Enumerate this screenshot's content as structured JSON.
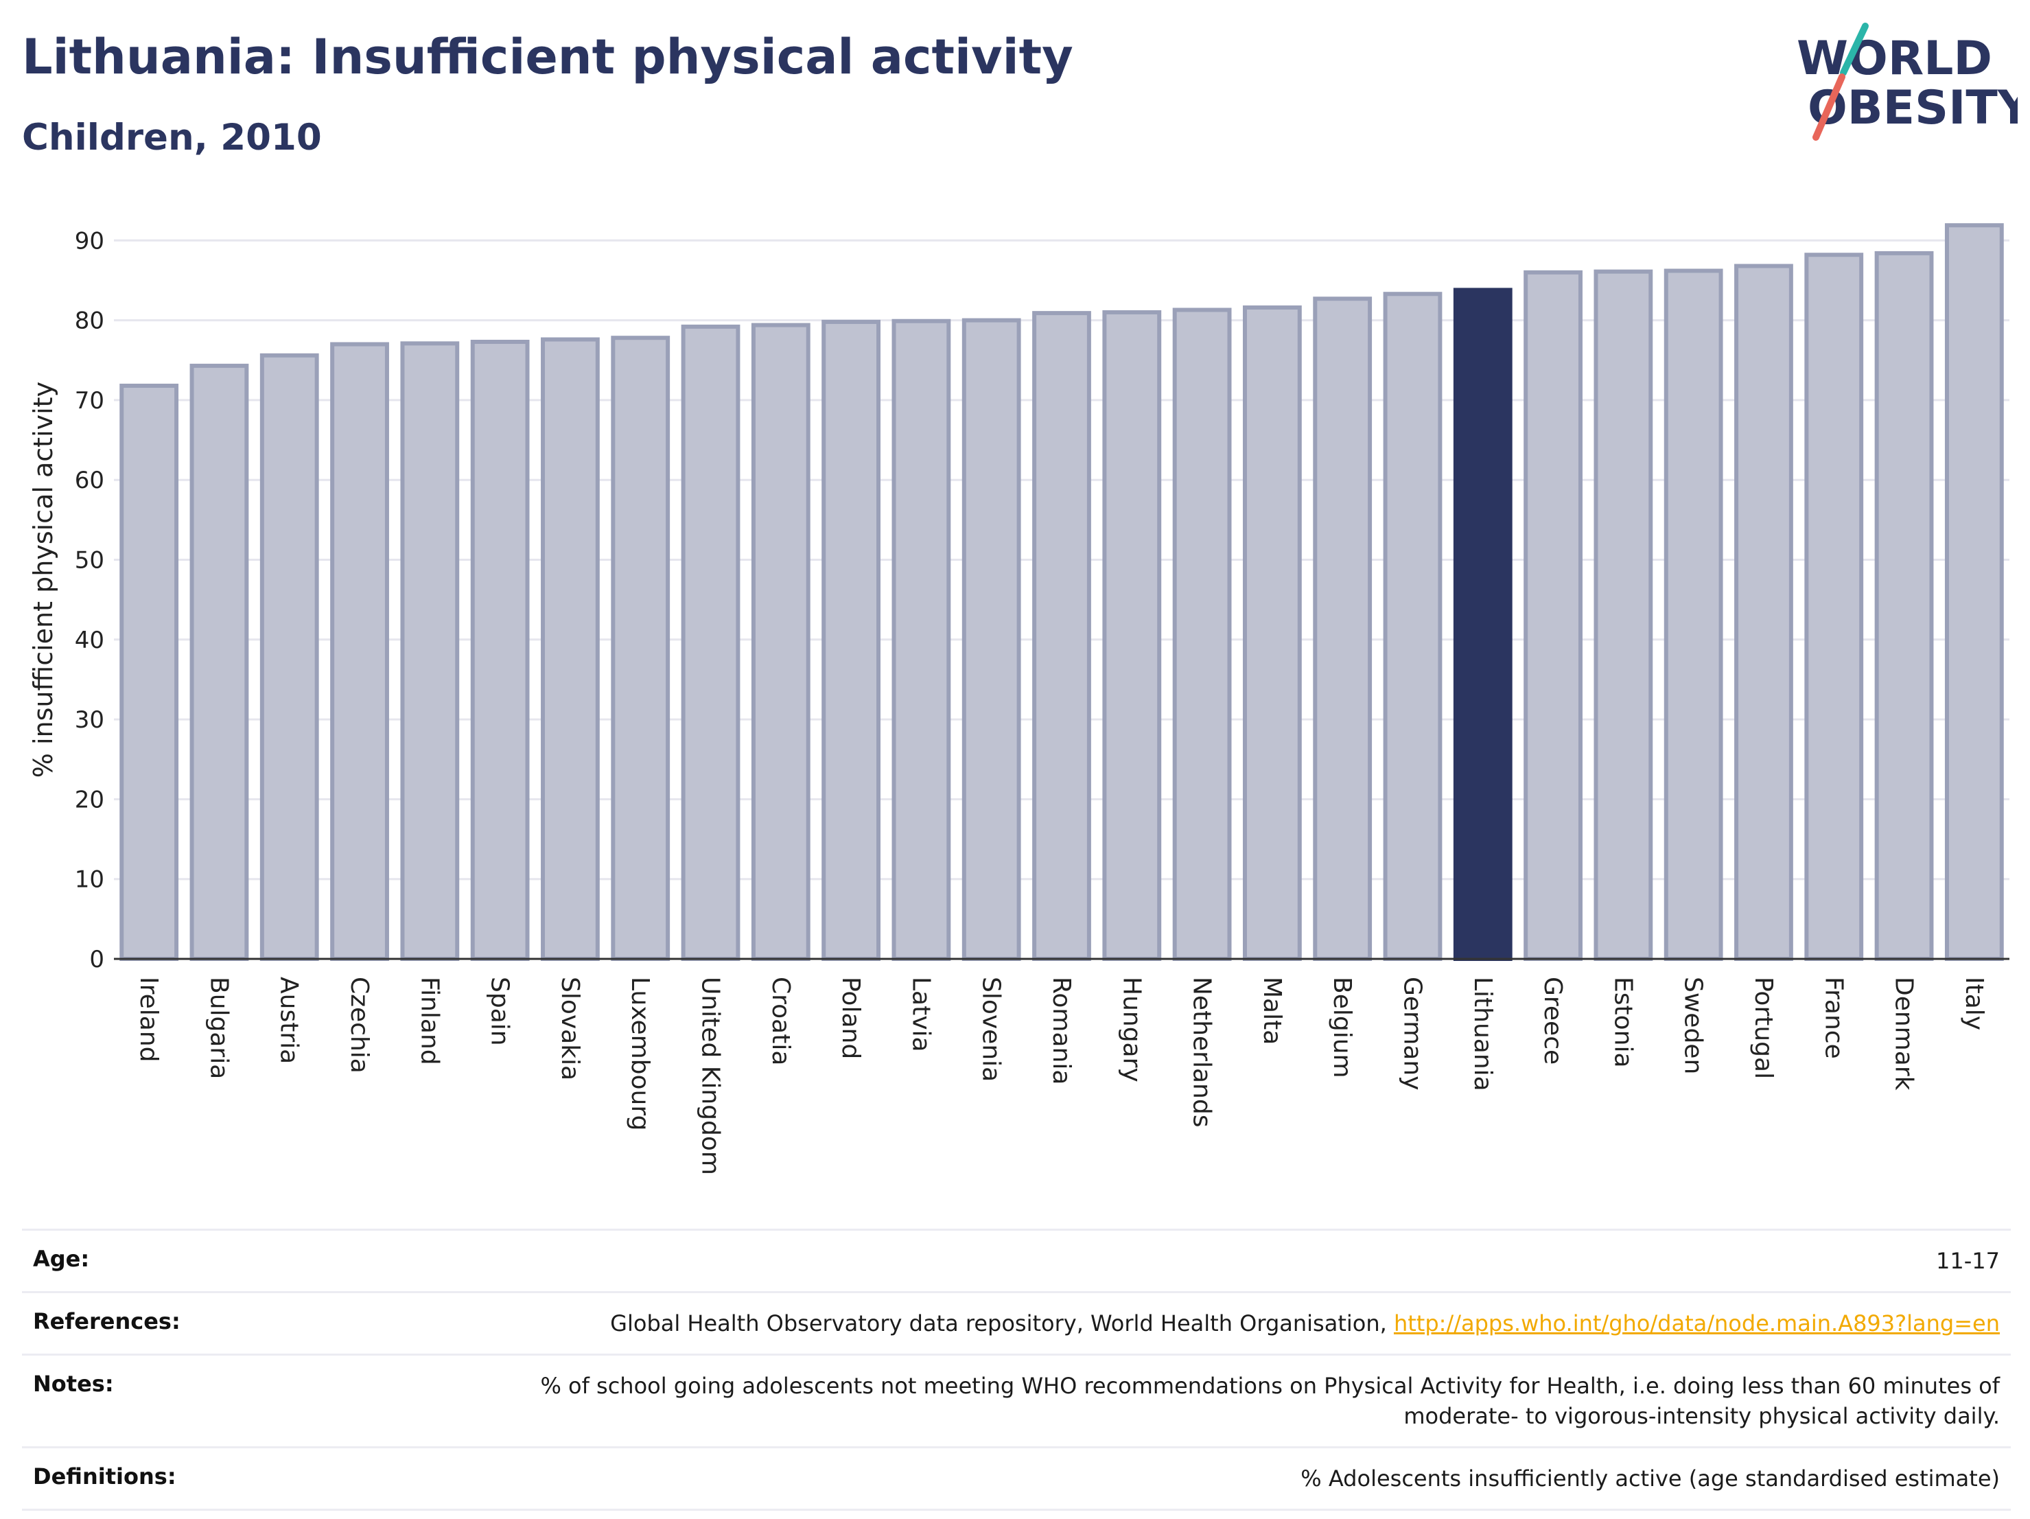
{
  "header": {
    "title": "Lithuania: Insufficient physical activity",
    "subtitle": "Children, 2010"
  },
  "logo": {
    "line1": "WORLD",
    "line2": "OBESITY",
    "accent_teal": "#2bb5a9",
    "accent_red": "#e8665a"
  },
  "colors": {
    "bar": "#bfc2d1",
    "bar_stroke": "#9aa0b8",
    "highlight": "#2b3560",
    "text": "#2b3560"
  },
  "chart_data": {
    "type": "bar",
    "title": "Lithuania: Insufficient physical activity",
    "subtitle": "Children, 2010",
    "ylabel": "% insufficient physical activity",
    "xlabel": "",
    "ylim": [
      0,
      95
    ],
    "yticks": [
      0,
      10,
      20,
      30,
      40,
      50,
      60,
      70,
      80,
      90
    ],
    "grid": true,
    "highlight": "Lithuania",
    "categories": [
      "Ireland",
      "Bulgaria",
      "Austria",
      "Czechia",
      "Finland",
      "Spain",
      "Slovakia",
      "Luxembourg",
      "United Kingdom",
      "Croatia",
      "Poland",
      "Latvia",
      "Slovenia",
      "Romania",
      "Hungary",
      "Netherlands",
      "Malta",
      "Belgium",
      "Germany",
      "Lithuania",
      "Greece",
      "Estonia",
      "Sweden",
      "Portugal",
      "France",
      "Denmark",
      "Italy"
    ],
    "values": [
      71.8,
      74.3,
      75.6,
      77.0,
      77.1,
      77.3,
      77.6,
      77.8,
      79.2,
      79.4,
      79.8,
      79.9,
      80.0,
      80.9,
      81.0,
      81.3,
      81.6,
      82.7,
      83.3,
      83.8,
      86.0,
      86.1,
      86.2,
      86.8,
      88.2,
      88.4,
      91.9
    ]
  },
  "meta": {
    "rows": [
      {
        "label": "Age:",
        "value": "11-17"
      },
      {
        "label": "References:",
        "value": "Global Health Observatory data repository, World Health Organisation, ",
        "link": "http://apps.who.int/gho/data/node.main.A893?lang=en"
      },
      {
        "label": "Notes:",
        "value": "% of school going adolescents not meeting WHO recommendations on Physical Activity for Health, i.e. doing less than 60 minutes of moderate- to vigorous-intensity physical activity daily."
      },
      {
        "label": "Definitions:",
        "value": "% Adolescents insufficiently active (age standardised estimate)"
      }
    ]
  }
}
